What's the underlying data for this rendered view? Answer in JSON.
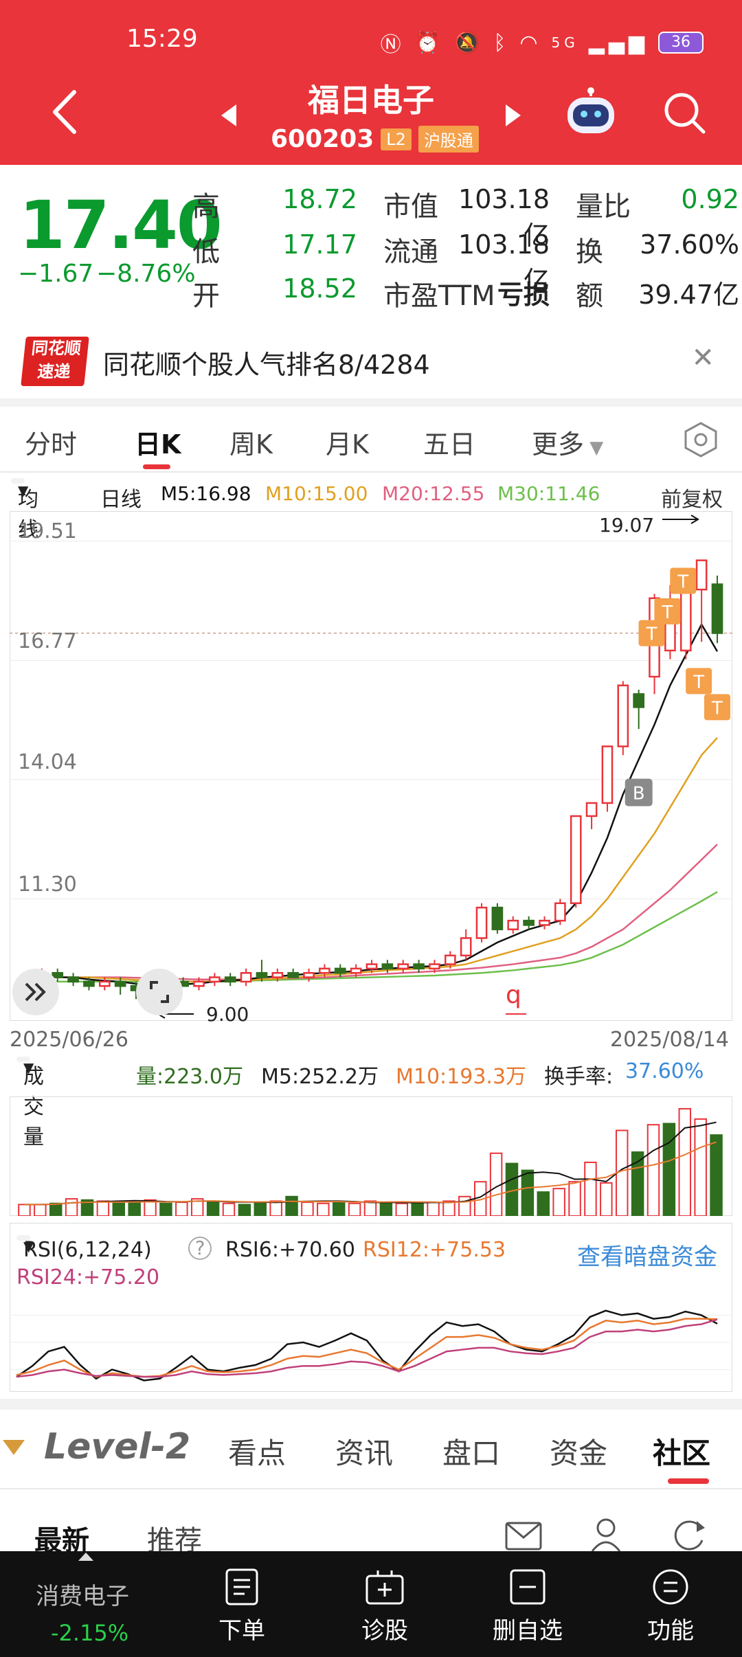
{
  "status_bar": {
    "time": "15:29",
    "network": "5G",
    "battery": "36"
  },
  "header": {
    "title": "福日电子",
    "code": "600203",
    "tag_l2": "L2",
    "tag_connect": "沪股通"
  },
  "quote": {
    "price": "17.40",
    "change": "−1.67",
    "change_pct": "−8.76%",
    "rows": [
      {
        "l1": "高",
        "v1": "18.72",
        "l2": "市值",
        "v2": "103.18亿",
        "l3": "量比",
        "v3": "0.92"
      },
      {
        "l1": "低",
        "v1": "17.17",
        "l2": "流通",
        "v2": "103.18亿",
        "l3": "换",
        "v3": "37.60%"
      },
      {
        "l1": "开",
        "v1": "18.52",
        "l2": "市盈TTM",
        "v2": "亏损",
        "l3": "额",
        "v3": "39.47亿"
      }
    ]
  },
  "banner": {
    "logo_line1": "同花顺",
    "logo_line2": "速递",
    "text": "同花顺个股人气排名8/4284"
  },
  "kline_tabs": [
    "分时",
    "日K",
    "周K",
    "月K",
    "五日",
    "更多"
  ],
  "ma_line": {
    "selector": "均线",
    "period": "日线",
    "m5": "M5:16.98",
    "m10": "M10:15.00",
    "m20": "M20:12.55",
    "m30": "M30:11.46",
    "adjust": "前复权"
  },
  "colors": {
    "up": "#e8343a",
    "down": "#2f6e1e",
    "m5": "#111111",
    "m10": "#e0a020",
    "m20": "#e06080",
    "m30": "#6cbf4a"
  },
  "chart_data": [
    {
      "type": "candlestick",
      "y_ticks": [
        "19.51",
        "16.77",
        "14.04",
        "11.30"
      ],
      "ylim": [
        8.5,
        20.2
      ],
      "x_start": "2025/06/26",
      "x_end": "2025/08/14",
      "high_marker": "19.07",
      "low_marker": "9.00",
      "marker_q": "q",
      "marker_b": "B",
      "marker_t": "T",
      "last_close": 17.4,
      "candles": [
        [
          9.4,
          9.5,
          9.2,
          9.6
        ],
        [
          9.5,
          9.6,
          9.3,
          9.7
        ],
        [
          9.6,
          9.5,
          9.4,
          9.7
        ],
        [
          9.5,
          9.4,
          9.3,
          9.6
        ],
        [
          9.4,
          9.3,
          9.2,
          9.5
        ],
        [
          9.3,
          9.4,
          9.2,
          9.5
        ],
        [
          9.4,
          9.3,
          9.1,
          9.5
        ],
        [
          9.3,
          9.2,
          9.0,
          9.4
        ],
        [
          9.2,
          9.3,
          9.1,
          9.4
        ],
        [
          9.3,
          9.4,
          9.2,
          9.5
        ],
        [
          9.4,
          9.3,
          9.3,
          9.5
        ],
        [
          9.3,
          9.4,
          9.2,
          9.5
        ],
        [
          9.4,
          9.5,
          9.3,
          9.6
        ],
        [
          9.5,
          9.4,
          9.3,
          9.6
        ],
        [
          9.4,
          9.6,
          9.3,
          9.7
        ],
        [
          9.6,
          9.5,
          9.4,
          9.9
        ],
        [
          9.5,
          9.6,
          9.4,
          9.7
        ],
        [
          9.6,
          9.5,
          9.5,
          9.7
        ],
        [
          9.5,
          9.6,
          9.4,
          9.7
        ],
        [
          9.6,
          9.7,
          9.5,
          9.8
        ],
        [
          9.7,
          9.6,
          9.5,
          9.8
        ],
        [
          9.6,
          9.7,
          9.5,
          9.8
        ],
        [
          9.7,
          9.8,
          9.6,
          9.9
        ],
        [
          9.8,
          9.7,
          9.6,
          9.9
        ],
        [
          9.7,
          9.8,
          9.6,
          9.9
        ],
        [
          9.8,
          9.7,
          9.6,
          9.9
        ],
        [
          9.7,
          9.8,
          9.6,
          9.9
        ],
        [
          9.8,
          10.0,
          9.7,
          10.1
        ],
        [
          10.0,
          10.4,
          9.9,
          10.6
        ],
        [
          10.4,
          11.1,
          10.3,
          11.2
        ],
        [
          11.1,
          10.6,
          10.5,
          11.2
        ],
        [
          10.6,
          10.8,
          10.5,
          10.9
        ],
        [
          10.8,
          10.7,
          10.6,
          10.9
        ],
        [
          10.7,
          10.8,
          10.6,
          10.9
        ],
        [
          10.8,
          11.2,
          10.7,
          11.3
        ],
        [
          11.2,
          13.2,
          11.1,
          13.2
        ],
        [
          13.2,
          13.5,
          12.9,
          13.5
        ],
        [
          13.5,
          14.8,
          13.3,
          14.8
        ],
        [
          14.8,
          16.2,
          14.6,
          16.3
        ],
        [
          16.0,
          15.7,
          15.2,
          16.1
        ],
        [
          16.4,
          18.2,
          16.0,
          18.3
        ],
        [
          17.0,
          18.0,
          16.8,
          18.5
        ],
        [
          17.0,
          18.4,
          16.8,
          18.6
        ],
        [
          18.4,
          19.07,
          17.2,
          19.07
        ],
        [
          18.52,
          17.4,
          17.17,
          18.72
        ]
      ],
      "ma5": [
        9.5,
        9.5,
        9.5,
        9.5,
        9.45,
        9.42,
        9.4,
        9.35,
        9.3,
        9.32,
        9.34,
        9.36,
        9.4,
        9.42,
        9.45,
        9.5,
        9.52,
        9.55,
        9.58,
        9.6,
        9.62,
        9.64,
        9.68,
        9.7,
        9.72,
        9.74,
        9.76,
        9.8,
        9.9,
        10.1,
        10.3,
        10.45,
        10.6,
        10.7,
        10.8,
        11.2,
        11.9,
        12.7,
        13.7,
        14.5,
        15.3,
        16.2,
        16.9,
        17.6,
        16.98
      ],
      "ma10": [
        9.5,
        9.5,
        9.5,
        9.5,
        9.5,
        9.48,
        9.46,
        9.44,
        9.42,
        9.4,
        9.4,
        9.4,
        9.41,
        9.42,
        9.43,
        9.45,
        9.47,
        9.5,
        9.52,
        9.55,
        9.57,
        9.6,
        9.63,
        9.66,
        9.68,
        9.7,
        9.72,
        9.75,
        9.8,
        9.9,
        10.0,
        10.1,
        10.2,
        10.3,
        10.4,
        10.6,
        10.9,
        11.3,
        11.8,
        12.3,
        12.8,
        13.4,
        14.0,
        14.6,
        15.0
      ],
      "ma20": [
        9.5,
        9.5,
        9.5,
        9.5,
        9.5,
        9.5,
        9.5,
        9.49,
        9.48,
        9.47,
        9.46,
        9.45,
        9.45,
        9.45,
        9.45,
        9.46,
        9.47,
        9.48,
        9.49,
        9.5,
        9.52,
        9.54,
        9.56,
        9.58,
        9.6,
        9.62,
        9.64,
        9.66,
        9.69,
        9.72,
        9.76,
        9.8,
        9.85,
        9.9,
        9.95,
        10.05,
        10.2,
        10.4,
        10.6,
        10.9,
        11.2,
        11.5,
        11.85,
        12.2,
        12.55
      ],
      "ma30": [
        9.4,
        9.4,
        9.4,
        9.4,
        9.4,
        9.4,
        9.4,
        9.4,
        9.4,
        9.4,
        9.4,
        9.4,
        9.4,
        9.41,
        9.42,
        9.43,
        9.44,
        9.45,
        9.46,
        9.47,
        9.48,
        9.49,
        9.5,
        9.51,
        9.52,
        9.53,
        9.54,
        9.56,
        9.58,
        9.6,
        9.63,
        9.66,
        9.7,
        9.74,
        9.78,
        9.85,
        9.95,
        10.1,
        10.25,
        10.45,
        10.65,
        10.85,
        11.05,
        11.25,
        11.46
      ]
    },
    {
      "type": "bar",
      "selector": "成交量",
      "vol": "量:223.0万",
      "m5": "M5:252.2万",
      "m10": "M10:193.3万",
      "turnover_label": "换手率:",
      "turnover_value": "37.60%",
      "values": [
        20,
        20,
        22,
        30,
        28,
        26,
        24,
        26,
        28,
        22,
        24,
        30,
        26,
        22,
        20,
        24,
        26,
        34,
        24,
        22,
        24,
        22,
        26,
        24,
        22,
        22,
        24,
        26,
        34,
        60,
        110,
        92,
        80,
        42,
        48,
        60,
        94,
        58,
        150,
        112,
        160,
        162,
        188,
        170,
        142
      ],
      "up": [
        1,
        1,
        0,
        1,
        0,
        1,
        0,
        0,
        1,
        0,
        1,
        1,
        0,
        1,
        0,
        0,
        1,
        0,
        1,
        1,
        0,
        1,
        1,
        0,
        1,
        0,
        1,
        1,
        1,
        1,
        1,
        0,
        0,
        0,
        1,
        1,
        1,
        1,
        1,
        0,
        1,
        0,
        1,
        1,
        0
      ],
      "ylim": [
        0,
        200
      ]
    },
    {
      "type": "line",
      "selector": "RSI(6,12,24)",
      "rsi6": "RSI6:+70.60",
      "rsi12": "RSI12:+75.53",
      "rsi24": "RSI24:+75.20",
      "link": "查看暗盘资金",
      "ylim": [
        0,
        100
      ],
      "series": [
        {
          "key": "rsi6",
          "color": "#111111",
          "values": [
            12,
            24,
            40,
            45,
            25,
            10,
            20,
            15,
            8,
            10,
            22,
            35,
            20,
            18,
            22,
            25,
            32,
            48,
            50,
            45,
            52,
            60,
            52,
            30,
            18,
            40,
            58,
            72,
            68,
            70,
            62,
            48,
            42,
            40,
            48,
            58,
            78,
            85,
            80,
            82,
            76,
            78,
            84,
            80,
            70.6
          ]
        },
        {
          "key": "rsi12",
          "color": "#e87830",
          "values": [
            14,
            18,
            25,
            30,
            20,
            12,
            16,
            14,
            12,
            13,
            18,
            24,
            18,
            17,
            18,
            20,
            25,
            32,
            35,
            34,
            38,
            42,
            38,
            28,
            20,
            32,
            44,
            56,
            56,
            58,
            55,
            48,
            44,
            42,
            46,
            52,
            66,
            74,
            72,
            74,
            70,
            72,
            76,
            76,
            75.53
          ]
        },
        {
          "key": "rsi24",
          "color": "#c0407a",
          "values": [
            12,
            14,
            18,
            20,
            16,
            13,
            14,
            13,
            12,
            12,
            14,
            18,
            15,
            14,
            15,
            16,
            18,
            22,
            24,
            24,
            26,
            29,
            28,
            24,
            18,
            24,
            32,
            40,
            42,
            44,
            44,
            40,
            38,
            37,
            40,
            44,
            56,
            62,
            62,
            64,
            62,
            64,
            68,
            70,
            75.2
          ]
        }
      ]
    }
  ],
  "nav": {
    "level2_logo": "Level-2",
    "tabs": [
      "看点",
      "资讯",
      "盘口",
      "资金",
      "社区"
    ],
    "subtabs": [
      "最新",
      "推荐"
    ]
  },
  "bottom_bar": {
    "sector": "消费电子",
    "sector_change": "-2.15%",
    "items": [
      "下单",
      "诊股",
      "删自选",
      "功能"
    ]
  }
}
